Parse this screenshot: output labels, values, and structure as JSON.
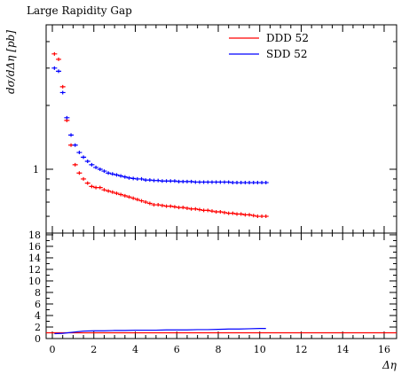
{
  "chart_data": [
    {
      "type": "scatter",
      "panel": "main",
      "title": "Large Rapidity Gap",
      "ylabel": "dσ/dΔη [pb]",
      "xlim": [
        -0.3,
        16.6
      ],
      "ylim": [
        0.5,
        4.8
      ],
      "yscale": "log",
      "yticks": [
        "1"
      ],
      "legend": "top-right",
      "grid": false,
      "series": [
        {
          "name": "DDD 52",
          "color": "#ff0000",
          "x": [
            0.1,
            0.3,
            0.5,
            0.7,
            0.9,
            1.1,
            1.3,
            1.5,
            1.7,
            1.9,
            2.1,
            2.3,
            2.5,
            2.7,
            2.9,
            3.1,
            3.3,
            3.5,
            3.7,
            3.9,
            4.1,
            4.3,
            4.5,
            4.7,
            4.9,
            5.1,
            5.3,
            5.5,
            5.7,
            5.9,
            6.1,
            6.3,
            6.5,
            6.7,
            6.9,
            7.1,
            7.3,
            7.5,
            7.7,
            7.9,
            8.1,
            8.3,
            8.5,
            8.7,
            8.9,
            9.1,
            9.3,
            9.5,
            9.7,
            9.9,
            10.1,
            10.3
          ],
          "values": [
            3.5,
            3.3,
            2.45,
            1.7,
            1.3,
            1.05,
            0.96,
            0.9,
            0.86,
            0.83,
            0.82,
            0.82,
            0.8,
            0.79,
            0.78,
            0.77,
            0.76,
            0.75,
            0.74,
            0.73,
            0.72,
            0.71,
            0.7,
            0.69,
            0.68,
            0.68,
            0.675,
            0.67,
            0.67,
            0.665,
            0.66,
            0.66,
            0.655,
            0.65,
            0.65,
            0.645,
            0.64,
            0.64,
            0.635,
            0.63,
            0.63,
            0.625,
            0.62,
            0.62,
            0.615,
            0.615,
            0.61,
            0.61,
            0.605,
            0.6,
            0.6,
            0.6
          ]
        },
        {
          "name": "SDD 52",
          "color": "#0000ff",
          "x": [
            0.1,
            0.3,
            0.5,
            0.7,
            0.9,
            1.1,
            1.3,
            1.5,
            1.7,
            1.9,
            2.1,
            2.3,
            2.5,
            2.7,
            2.9,
            3.1,
            3.3,
            3.5,
            3.7,
            3.9,
            4.1,
            4.3,
            4.5,
            4.7,
            4.9,
            5.1,
            5.3,
            5.5,
            5.7,
            5.9,
            6.1,
            6.3,
            6.5,
            6.7,
            6.9,
            7.1,
            7.3,
            7.5,
            7.7,
            7.9,
            8.1,
            8.3,
            8.5,
            8.7,
            8.9,
            9.1,
            9.3,
            9.5,
            9.7,
            9.9,
            10.1,
            10.3
          ],
          "values": [
            3.0,
            2.9,
            2.3,
            1.75,
            1.45,
            1.3,
            1.2,
            1.14,
            1.09,
            1.05,
            1.02,
            1.0,
            0.98,
            0.96,
            0.95,
            0.94,
            0.93,
            0.92,
            0.91,
            0.905,
            0.9,
            0.9,
            0.89,
            0.89,
            0.885,
            0.885,
            0.88,
            0.88,
            0.88,
            0.88,
            0.875,
            0.875,
            0.875,
            0.875,
            0.87,
            0.87,
            0.87,
            0.87,
            0.87,
            0.87,
            0.87,
            0.87,
            0.87,
            0.865,
            0.865,
            0.865,
            0.865,
            0.865,
            0.865,
            0.865,
            0.865,
            0.865
          ]
        }
      ]
    },
    {
      "type": "line",
      "panel": "ratio",
      "xlabel": "Δη",
      "xlim": [
        -0.3,
        16.6
      ],
      "ylim": [
        0,
        18.3
      ],
      "xticks": [
        0,
        2,
        4,
        6,
        8,
        10,
        12,
        14,
        16
      ],
      "yticks": [
        0,
        2,
        4,
        6,
        8,
        10,
        12,
        14,
        16,
        18
      ],
      "series": [
        {
          "name": "DDD 52",
          "color": "#ff0000",
          "x": [
            -0.3,
            16.6
          ],
          "values": [
            1,
            1
          ]
        },
        {
          "name": "SDD 52",
          "color": "#0000ff",
          "x": [
            0.1,
            0.5,
            1.0,
            1.5,
            2.0,
            2.5,
            3.0,
            3.5,
            4.0,
            4.5,
            5.0,
            5.5,
            6.0,
            6.5,
            7.0,
            7.5,
            8.0,
            8.5,
            9.0,
            9.5,
            10.0,
            10.3
          ],
          "values": [
            0.85,
            0.9,
            1.1,
            1.3,
            1.35,
            1.35,
            1.4,
            1.4,
            1.45,
            1.45,
            1.45,
            1.5,
            1.5,
            1.5,
            1.55,
            1.55,
            1.6,
            1.65,
            1.65,
            1.7,
            1.75,
            1.75
          ]
        }
      ]
    }
  ]
}
